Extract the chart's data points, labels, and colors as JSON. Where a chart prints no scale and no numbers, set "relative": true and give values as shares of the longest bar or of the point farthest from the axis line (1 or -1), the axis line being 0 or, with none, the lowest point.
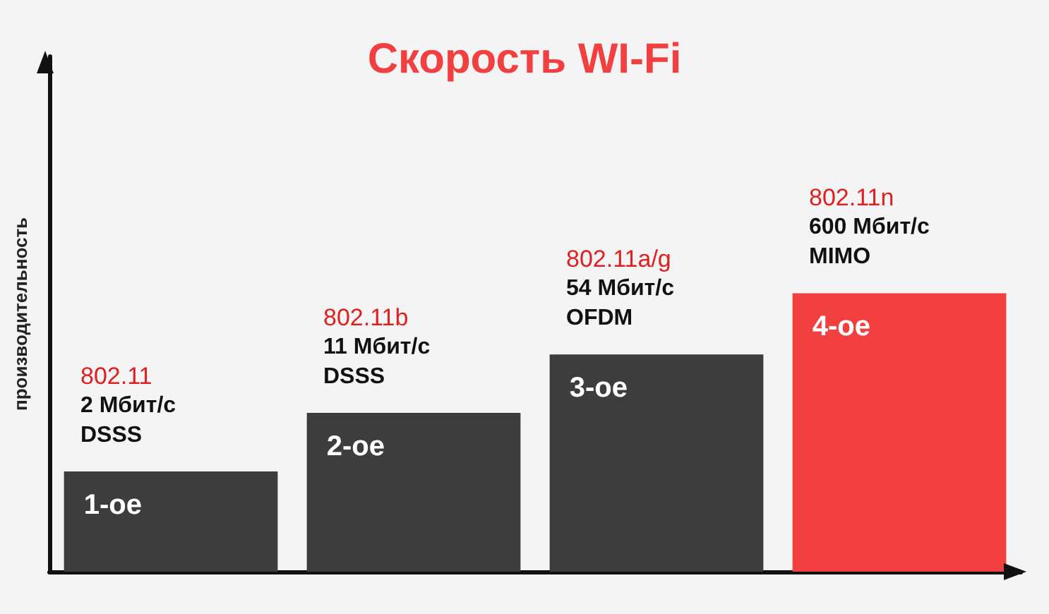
{
  "chart_data": {
    "type": "bar",
    "title": "Скорость WI-Fi",
    "ylabel": "производительность",
    "relative": true,
    "categories": [
      "1-ое",
      "2-ое",
      "3-ое",
      "4-ое"
    ],
    "values": [
      0.36,
      0.57,
      0.78,
      1
    ],
    "colors": [
      "#3d3d3d",
      "#3d3d3d",
      "#3d3d3d",
      "#f23f3f"
    ],
    "annotations": [
      {
        "text": "802.11\n2 Мбит/с\nDSSS",
        "x": "1-ое",
        "y": 0.36
      },
      {
        "text": "802.11b\n11 Мбит/с\nDSSS",
        "x": "2-ое",
        "y": 0.57
      },
      {
        "text": "802.11a/g\n54 Мбит/с\nOFDM",
        "x": "3-ое",
        "y": 0.78
      },
      {
        "text": "802.11n\n600 Мбит/с\nMIMO",
        "x": "4-ое",
        "y": 1
      }
    ],
    "grid": false
  }
}
